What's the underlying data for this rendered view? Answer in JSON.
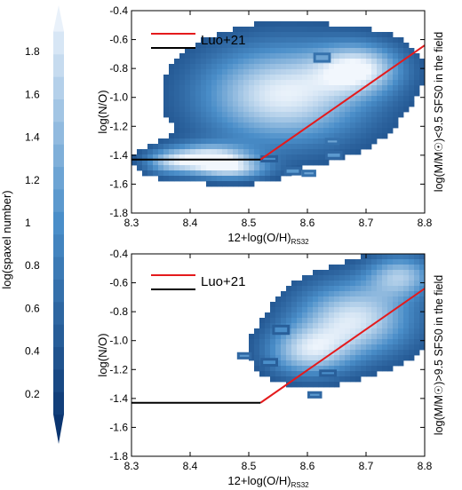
{
  "colorbar": {
    "label": "log(spaxel number)",
    "ticks": [
      "0.2",
      "0.4",
      "0.6",
      "0.8",
      "1",
      "1.2",
      "1.4",
      "1.6",
      "1.8"
    ],
    "range": [
      0.0,
      2.0
    ],
    "n_levels": 19,
    "color_low": "#08306b",
    "color_mid": "#4a8ec9",
    "color_high": "#f2f7fd"
  },
  "chart_data": [
    {
      "type": "heatmap",
      "title": "",
      "xlabel": "12+log(O/H)",
      "xlabel_sub": "RS32",
      "ylabel": "log(N/O)",
      "side_label": "log(M/M☉)<9.5 SFS0 in the field",
      "xlim": [
        8.3,
        8.8
      ],
      "ylim": [
        -1.8,
        -0.4
      ],
      "xticks": [
        "8.3",
        "8.4",
        "8.5",
        "8.6",
        "8.7",
        "8.8"
      ],
      "yticks": [
        "-1.8",
        "-1.6",
        "-1.4",
        "-1.2",
        "-1.0",
        "-0.8",
        "-0.6",
        "-0.4"
      ],
      "legend": {
        "position": "top-left",
        "entries": [
          "Luo+21",
          ""
        ]
      },
      "series": [
        {
          "name": "Luo+21",
          "color": "#e41a1c",
          "points": [
            [
              8.52,
              -1.43
            ],
            [
              8.8,
              -0.64
            ]
          ]
        },
        {
          "name": "",
          "color": "#000000",
          "points": [
            [
              8.3,
              -1.43
            ],
            [
              8.52,
              -1.43
            ]
          ]
        }
      ],
      "density": [
        {
          "x": 8.56,
          "y": -0.98,
          "sx": 0.1,
          "sy": 0.24,
          "a": 1.6
        },
        {
          "x": 8.69,
          "y": -0.8,
          "sx": 0.05,
          "sy": 0.12,
          "a": 1.3
        },
        {
          "x": 8.43,
          "y": -1.43,
          "sx": 0.05,
          "sy": 0.07,
          "a": 1.7
        },
        {
          "x": 8.36,
          "y": -1.45,
          "sx": 0.03,
          "sy": 0.06,
          "a": 0.7
        },
        {
          "x": 8.48,
          "y": -1.5,
          "sx": 0.04,
          "sy": 0.05,
          "a": 0.8
        }
      ],
      "boxes": [
        {
          "x": 8.61,
          "y": -0.76,
          "w": 0.03,
          "h": 0.07,
          "v": 0.7
        },
        {
          "x": 8.63,
          "y": -1.33,
          "w": 0.025,
          "h": 0.05,
          "v": 0.7
        },
        {
          "x": 8.63,
          "y": -1.43,
          "w": 0.03,
          "h": 0.06,
          "v": 0.6
        },
        {
          "x": 8.56,
          "y": -1.54,
          "w": 0.03,
          "h": 0.06,
          "v": 0.6
        },
        {
          "x": 8.59,
          "y": -1.55,
          "w": 0.025,
          "h": 0.05,
          "v": 0.7
        },
        {
          "x": 8.52,
          "y": -1.45,
          "w": 0.03,
          "h": 0.05,
          "v": 0.5
        }
      ]
    },
    {
      "type": "heatmap",
      "title": "",
      "xlabel": "12+log(O/H)",
      "xlabel_sub": "RS32",
      "ylabel": "log(N/O)",
      "side_label": "log(M/M☉)>9.5 SFS0 in the field",
      "xlim": [
        8.3,
        8.8
      ],
      "ylim": [
        -1.8,
        -0.4
      ],
      "xticks": [
        "8.3",
        "8.4",
        "8.5",
        "8.6",
        "8.7",
        "8.8"
      ],
      "yticks": [
        "-1.8",
        "-1.6",
        "-1.4",
        "-1.2",
        "-1.0",
        "-0.8",
        "-0.6",
        "-0.4"
      ],
      "legend": {
        "position": "top-left",
        "entries": [
          "Luo+21",
          ""
        ]
      },
      "series": [
        {
          "name": "Luo+21",
          "color": "#e41a1c",
          "points": [
            [
              8.52,
              -1.43
            ],
            [
              8.8,
              -0.64
            ]
          ]
        },
        {
          "name": "",
          "color": "#000000",
          "points": [
            [
              8.3,
              -1.43
            ],
            [
              8.52,
              -1.43
            ]
          ]
        }
      ],
      "density": [
        {
          "x": 8.68,
          "y": -0.85,
          "sx": 0.07,
          "sy": 0.18,
          "a": 1.5
        },
        {
          "x": 8.6,
          "y": -1.08,
          "sx": 0.05,
          "sy": 0.12,
          "a": 1.2
        },
        {
          "x": 8.76,
          "y": -0.55,
          "sx": 0.04,
          "sy": 0.1,
          "a": 1.1
        }
      ],
      "boxes": [
        {
          "x": 8.54,
          "y": -0.96,
          "w": 0.03,
          "h": 0.07,
          "v": 0.5
        },
        {
          "x": 8.48,
          "y": -1.13,
          "w": 0.025,
          "h": 0.05,
          "v": 0.6
        },
        {
          "x": 8.52,
          "y": -1.18,
          "w": 0.03,
          "h": 0.06,
          "v": 0.5
        },
        {
          "x": 8.6,
          "y": -1.4,
          "w": 0.025,
          "h": 0.05,
          "v": 0.6
        },
        {
          "x": 8.62,
          "y": -1.25,
          "w": 0.03,
          "h": 0.05,
          "v": 0.5
        }
      ]
    }
  ]
}
